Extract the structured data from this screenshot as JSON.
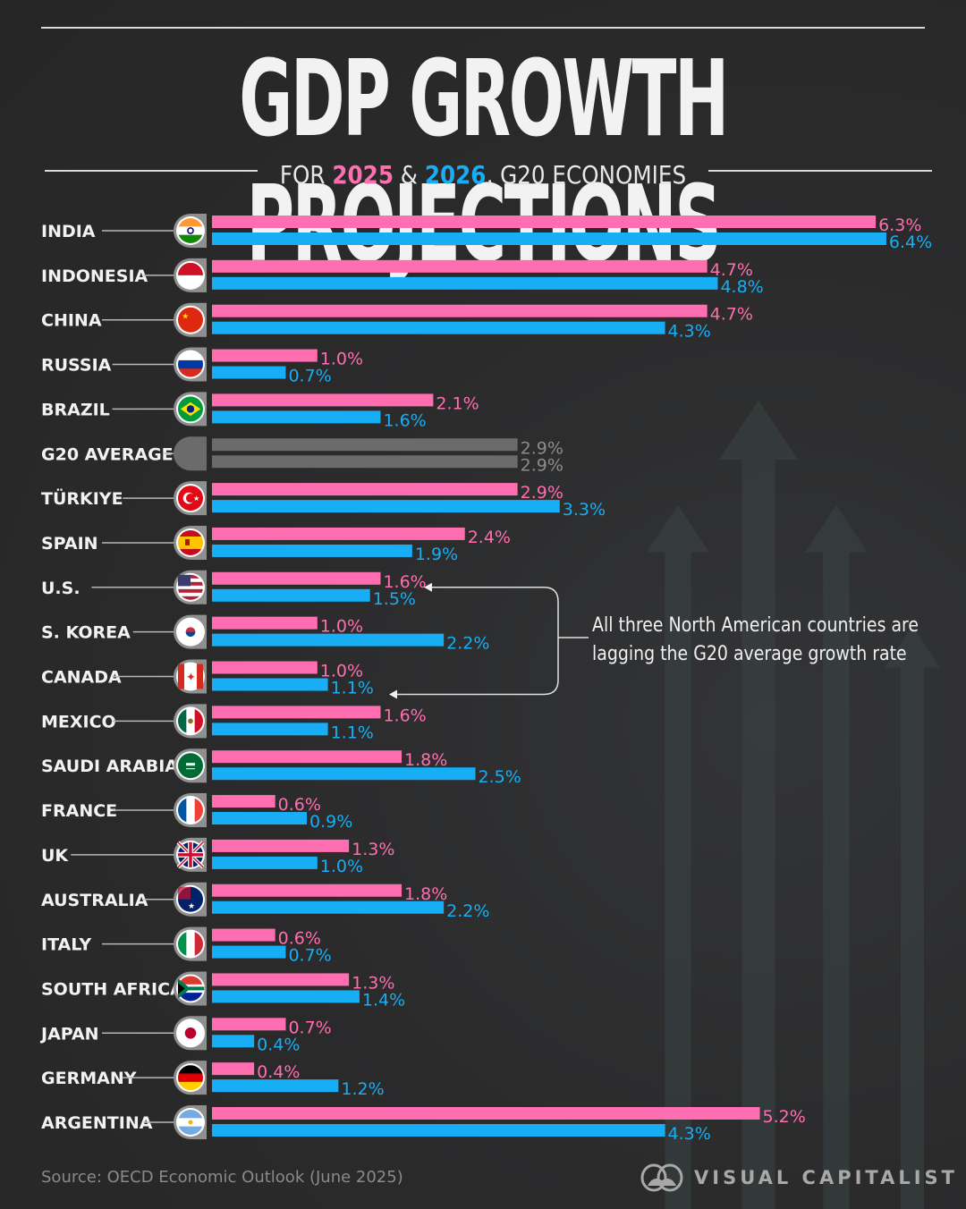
{
  "header": {
    "title": "GDP GROWTH PROJECTIONS",
    "subtitle_prefix": "FOR ",
    "subtitle_year1": "2025",
    "subtitle_amp": " & ",
    "subtitle_year2": "2026",
    "subtitle_suffix": ",  G20 ECONOMIES"
  },
  "colors": {
    "series_2025": "#ff6eb0",
    "series_2026": "#17aef5",
    "average": "#6b6b6b",
    "average_label": "#8c8c8c"
  },
  "annotation": {
    "line1": "All three North American countries are",
    "line2": "lagging the G20 average growth rate",
    "targets": [
      "U.S.",
      "MEXICO"
    ]
  },
  "footer": {
    "source": "Source: OECD Economic Outlook (June 2025)",
    "brand": "VISUAL CAPITALIST"
  },
  "chart_data": {
    "type": "bar",
    "orientation": "horizontal",
    "title": "GDP GROWTH PROJECTIONS",
    "subtitle": "FOR 2025 & 2026, G20 ECONOMIES",
    "xlabel": "",
    "ylabel": "",
    "unit": "%",
    "xlim": [
      0,
      6.4
    ],
    "grid": false,
    "legend": "subtitle (2025 pink, 2026 blue)",
    "categories": [
      "INDIA",
      "INDONESIA",
      "CHINA",
      "RUSSIA",
      "BRAZIL",
      "G20 AVERAGE",
      "TÜRKIYE",
      "SPAIN",
      "U.S.",
      "S. KOREA",
      "CANADA",
      "MEXICO",
      "SAUDI ARABIA",
      "FRANCE",
      "UK",
      "AUSTRALIA",
      "ITALY",
      "SOUTH AFRICA",
      "JAPAN",
      "GERMANY",
      "ARGENTINA"
    ],
    "flags": [
      "india-flag",
      "indonesia-flag",
      "china-flag",
      "russia-flag",
      "brazil-flag",
      "none",
      "turkiye-flag",
      "spain-flag",
      "us-flag",
      "south-korea-flag",
      "canada-flag",
      "mexico-flag",
      "saudi-arabia-flag",
      "france-flag",
      "uk-flag",
      "australia-flag",
      "italy-flag",
      "south-africa-flag",
      "japan-flag",
      "germany-flag",
      "argentina-flag"
    ],
    "series": [
      {
        "name": "2025",
        "values": [
          6.3,
          4.7,
          4.7,
          1.0,
          2.1,
          2.9,
          2.9,
          2.4,
          1.6,
          1.0,
          1.0,
          1.6,
          1.8,
          0.6,
          1.3,
          1.8,
          0.6,
          1.3,
          0.7,
          0.4,
          5.2
        ]
      },
      {
        "name": "2026",
        "values": [
          6.4,
          4.8,
          4.3,
          0.7,
          1.6,
          2.9,
          3.3,
          1.9,
          1.5,
          2.2,
          1.1,
          1.1,
          2.5,
          0.9,
          1.0,
          2.2,
          0.7,
          1.4,
          0.4,
          1.2,
          4.3
        ]
      }
    ],
    "value_labels": {
      "2025": [
        "6.3%",
        "4.7%",
        "4.7%",
        "1.0%",
        "2.1%",
        "2.9%",
        "2.9%",
        "2.4%",
        "1.6%",
        "1.0%",
        "1.0%",
        "1.6%",
        "1.8%",
        "0.6%",
        "1.3%",
        "1.8%",
        "0.6%",
        "1.3%",
        "0.7%",
        "0.4%",
        "5.2%"
      ],
      "2026": [
        "6.4%",
        "4.8%",
        "4.3%",
        "0.7%",
        "1.6%",
        "2.9%",
        "3.3%",
        "1.9%",
        "1.5%",
        "2.2%",
        "1.1%",
        "1.1%",
        "2.5%",
        "0.9%",
        "1.0%",
        "2.2%",
        "0.7%",
        "1.4%",
        "0.4%",
        "1.2%",
        "4.3%"
      ]
    }
  }
}
